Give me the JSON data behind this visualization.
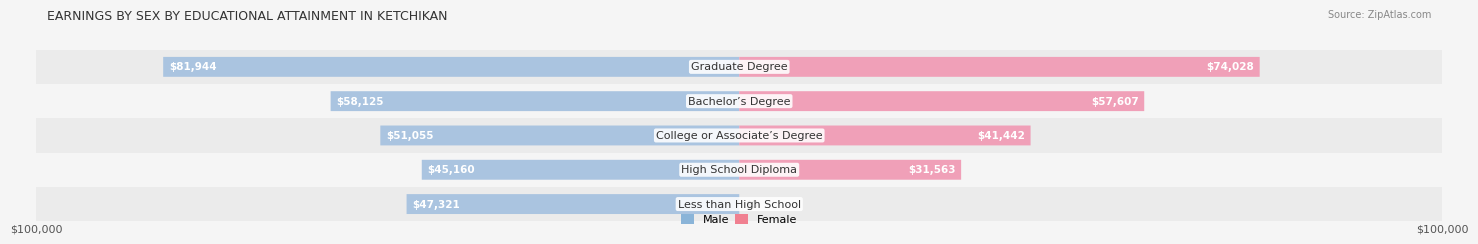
{
  "title": "EARNINGS BY SEX BY EDUCATIONAL ATTAINMENT IN KETCHIKAN",
  "source": "Source: ZipAtlas.com",
  "categories": [
    "Less than High School",
    "High School Diploma",
    "College or Associate’s Degree",
    "Bachelor’s Degree",
    "Graduate Degree"
  ],
  "male_values": [
    47321,
    45160,
    51055,
    58125,
    81944
  ],
  "female_values": [
    0,
    31563,
    41442,
    57607,
    74028
  ],
  "max_val": 100000,
  "male_color": "#aac4e0",
  "female_color": "#f0a0b8",
  "bg_colors": [
    "#ebebeb",
    "#f5f5f5"
  ],
  "axis_label_left": "$100,000",
  "axis_label_right": "$100,000"
}
